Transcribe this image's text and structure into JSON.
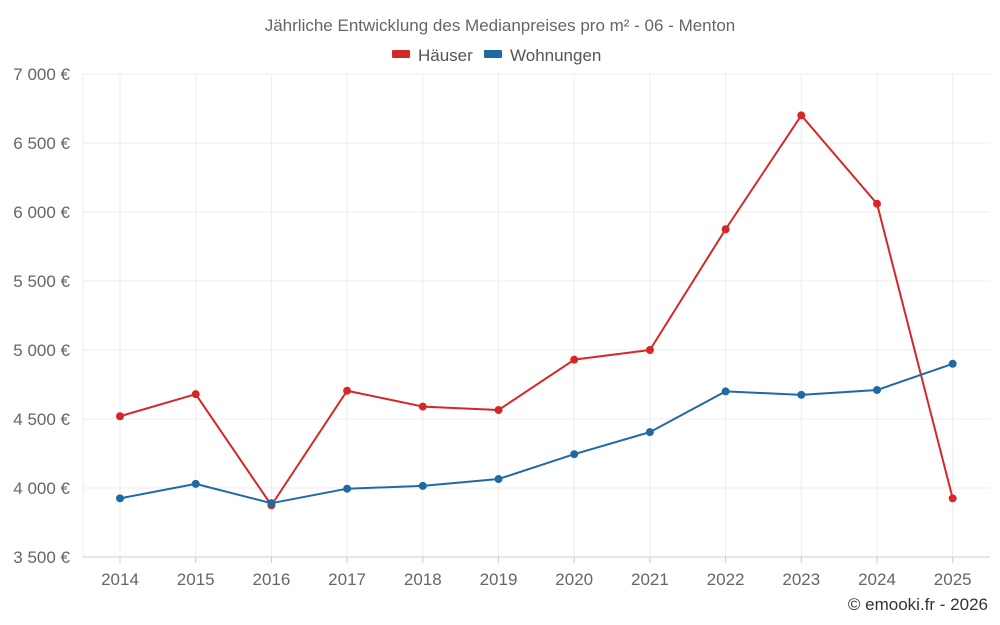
{
  "chart_data": {
    "type": "line",
    "title": "Jährliche Entwicklung des Medianpreises pro m² - 06 - Menton",
    "categories": [
      "2014",
      "2015",
      "2016",
      "2017",
      "2018",
      "2019",
      "2020",
      "2021",
      "2022",
      "2023",
      "2024",
      "2025"
    ],
    "series": [
      {
        "name": "Häuser",
        "color": "#d62728",
        "values": [
          4520,
          4680,
          3875,
          4705,
          4590,
          4565,
          4930,
          5000,
          5875,
          6700,
          6060,
          3925
        ]
      },
      {
        "name": "Wohnungen",
        "color": "#1f6aa5",
        "values": [
          3925,
          4030,
          3890,
          3995,
          4015,
          4065,
          4245,
          4405,
          4700,
          4675,
          4710,
          4900
        ]
      }
    ],
    "ylim": [
      3500,
      7000
    ],
    "y_ticks": [
      "3 500 €",
      "4 000 €",
      "4 500 €",
      "5 000 €",
      "5 500 €",
      "6 000 €",
      "6 500 €",
      "7 000 €"
    ],
    "y_tick_values": [
      3500,
      4000,
      4500,
      5000,
      5500,
      6000,
      6500,
      7000
    ],
    "xlabel": "",
    "ylabel": "",
    "legend_position": "top-center",
    "grid": true
  },
  "watermark": "© emooki.fr - 2026"
}
